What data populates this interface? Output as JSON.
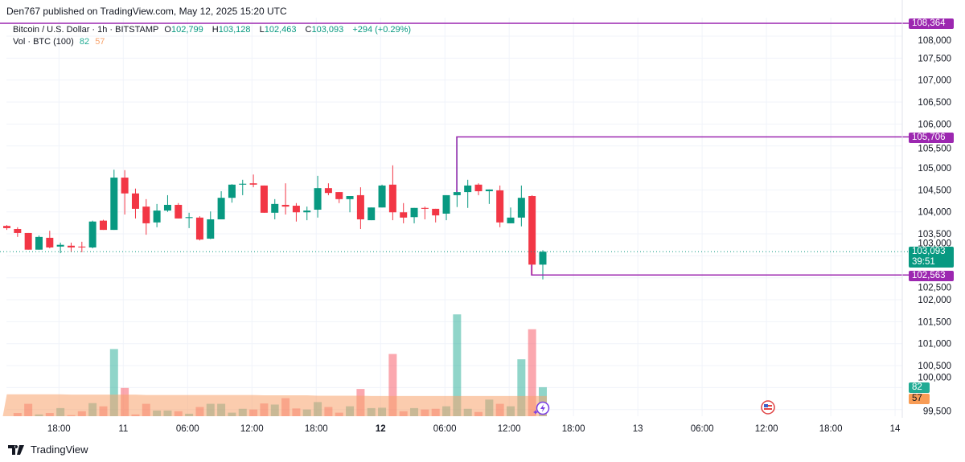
{
  "header": {
    "published": "Den767 published on TradingView.com, May 12, 2025 15:20 UTC"
  },
  "legend": {
    "symbol": "Bitcoin / U.S. Dollar · 1h · BITSTAMP",
    "o_label": "O",
    "o": "102,799",
    "h_label": "H",
    "h": "103,128",
    "l_label": "L",
    "l": "102,463",
    "c_label": "C",
    "c": "103,093",
    "change": "+294 (+0.29%)",
    "volume_label": "Vol · BTC (100)",
    "volume": "82",
    "volume_ma": "57"
  },
  "colors": {
    "up": "#089981",
    "down": "#f23645",
    "line": "#9c27b0",
    "vol_up": "#22ab94",
    "vol_down": "#f7525f",
    "vol_ma": "#f7a26b"
  },
  "price_axis": {
    "labels": [
      "108,000",
      "107,500",
      "107,000",
      "106,500",
      "106,000",
      "105,500",
      "105,000",
      "104,500",
      "104,000",
      "103,500",
      "103,000",
      "102,500",
      "102,000",
      "101,500",
      "101,000",
      "100,500",
      "100,000",
      "99,500"
    ],
    "values": [
      108000,
      107500,
      107000,
      106500,
      106000,
      105500,
      105000,
      104500,
      104000,
      103500,
      103000,
      102500,
      102000,
      101500,
      101000,
      100500,
      100000,
      99500
    ]
  },
  "time_axis": {
    "labels": [
      "18:00",
      "11",
      "06:00",
      "12:00",
      "18:00",
      "12",
      "06:00",
      "12:00",
      "18:00",
      "13",
      "06:00",
      "12:00",
      "18:00",
      "14"
    ],
    "hours_from_may11": [
      -6,
      0,
      6,
      12,
      18,
      24,
      30,
      36,
      42,
      48,
      54,
      60,
      66,
      72
    ],
    "bold": [
      "12"
    ]
  },
  "tags": {
    "high_line": "108,364",
    "mid_line": "105,706",
    "last_price": "103,093",
    "countdown": "39:51",
    "low_line": "102,563",
    "vol": "82",
    "vol_ma": "57"
  },
  "levels": {
    "high_line": 108364,
    "mid_line": 105706,
    "low_line": 102563,
    "last_price": 103093
  },
  "chart_data": {
    "type": "candlestick",
    "interval": "1h",
    "first_bar": "May 10 13:00",
    "ohlc": [
      [
        103680,
        103700,
        103590,
        103630
      ],
      [
        103610,
        103650,
        103430,
        103520
      ],
      [
        103520,
        103520,
        103140,
        103140
      ],
      [
        103140,
        103460,
        103140,
        103430
      ],
      [
        103410,
        103570,
        103170,
        103190
      ],
      [
        103210,
        103300,
        103060,
        103250
      ],
      [
        103230,
        103300,
        103080,
        103190
      ],
      [
        103210,
        103320,
        103080,
        103190
      ],
      [
        103190,
        103800,
        103170,
        103780
      ],
      [
        103800,
        103820,
        103590,
        103590
      ],
      [
        103590,
        104960,
        103590,
        104780
      ],
      [
        104780,
        104950,
        103940,
        104420
      ],
      [
        104420,
        104530,
        103850,
        104070
      ],
      [
        104120,
        104290,
        103480,
        103740
      ],
      [
        103760,
        104180,
        103650,
        104030
      ],
      [
        104030,
        104380,
        104000,
        104160
      ],
      [
        104160,
        104200,
        103850,
        103850
      ],
      [
        103860,
        103980,
        103630,
        103880
      ],
      [
        103870,
        103900,
        103350,
        103370
      ],
      [
        103390,
        104010,
        103380,
        103830
      ],
      [
        103830,
        104470,
        103830,
        104320
      ],
      [
        104320,
        104630,
        104210,
        104620
      ],
      [
        104620,
        104730,
        104380,
        104640
      ],
      [
        104650,
        104850,
        104560,
        104620
      ],
      [
        104600,
        104600,
        103980,
        103980
      ],
      [
        103980,
        104290,
        103830,
        104180
      ],
      [
        104160,
        104650,
        103940,
        104120
      ],
      [
        104140,
        104200,
        103780,
        103990
      ],
      [
        103990,
        104120,
        103810,
        104030
      ],
      [
        104050,
        104820,
        103870,
        104540
      ],
      [
        104540,
        104650,
        104380,
        104430
      ],
      [
        104450,
        104450,
        104200,
        104290
      ],
      [
        104290,
        104360,
        103990,
        104360
      ],
      [
        104380,
        104560,
        103610,
        103830
      ],
      [
        103810,
        104100,
        103810,
        104100
      ],
      [
        104100,
        104620,
        104100,
        104600
      ],
      [
        104620,
        105060,
        103810,
        103990
      ],
      [
        103990,
        104200,
        103740,
        103870
      ],
      [
        103880,
        104090,
        103740,
        104090
      ],
      [
        104090,
        104120,
        103830,
        104070
      ],
      [
        104070,
        104070,
        103760,
        103920
      ],
      [
        103960,
        104380,
        103810,
        104380
      ],
      [
        104380,
        105706,
        104110,
        104450
      ],
      [
        104450,
        104730,
        104090,
        104600
      ],
      [
        104620,
        104650,
        104380,
        104470
      ],
      [
        104470,
        104510,
        104180,
        104510
      ],
      [
        104490,
        104600,
        103650,
        103760
      ],
      [
        103740,
        104100,
        103740,
        103870
      ],
      [
        103870,
        104600,
        103670,
        104320
      ],
      [
        104360,
        104380,
        102563,
        102799
      ],
      [
        102799,
        103128,
        102463,
        103093
      ]
    ],
    "volume": [
      0,
      9,
      35,
      5,
      9,
      23,
      3,
      14,
      37,
      28,
      190,
      80,
      5,
      35,
      16,
      16,
      14,
      7,
      26,
      35,
      35,
      10,
      21,
      19,
      36,
      33,
      51,
      22,
      19,
      40,
      26,
      10,
      28,
      77,
      23,
      24,
      176,
      14,
      23,
      19,
      21,
      28,
      288,
      21,
      12,
      47,
      35,
      28,
      161,
      246,
      82
    ],
    "volume_ma": [
      62,
      62,
      62,
      62,
      62,
      62,
      61,
      61,
      61,
      61,
      61,
      61,
      61,
      60,
      60,
      60,
      60,
      60,
      60,
      60,
      60,
      60,
      60,
      60,
      59,
      59,
      59,
      59,
      59,
      58,
      58,
      58,
      58,
      58,
      57,
      57,
      57,
      57,
      57,
      57,
      57,
      57,
      57,
      57,
      57,
      57,
      57,
      57,
      57,
      57,
      57
    ],
    "ylim": [
      99300,
      108400
    ]
  }
}
